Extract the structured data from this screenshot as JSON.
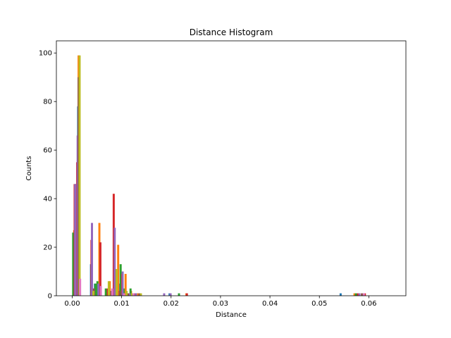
{
  "chart_data": {
    "type": "bar",
    "title": "Distance Histogram",
    "xlabel": "Distance",
    "ylabel": "Counts",
    "xlim": [
      -0.0032,
      0.0675
    ],
    "ylim": [
      0,
      105
    ],
    "x_ticks": [
      0.0,
      0.01,
      0.02,
      0.03,
      0.04,
      0.05,
      0.06
    ],
    "x_tick_labels": [
      "0.00",
      "0.01",
      "0.02",
      "0.03",
      "0.04",
      "0.05",
      "0.06"
    ],
    "y_ticks": [
      0,
      20,
      40,
      60,
      80,
      100
    ],
    "y_tick_labels": [
      "0",
      "20",
      "40",
      "60",
      "80",
      "100"
    ],
    "grid": false,
    "bin_width": 0.00042,
    "series": [
      {
        "color": "#1f77b4",
        "bars": [
          [
            0.0003,
            26
          ],
          [
            0.0008,
            46
          ],
          [
            0.0012,
            78
          ],
          [
            0.0038,
            13
          ],
          [
            0.0046,
            5
          ],
          [
            0.0085,
            14
          ],
          [
            0.0094,
            5
          ],
          [
            0.0108,
            2
          ],
          [
            0.0122,
            1
          ],
          [
            0.0131,
            1
          ],
          [
            0.0197,
            1
          ],
          [
            0.0543,
            1
          ]
        ]
      },
      {
        "color": "#ff7f0e",
        "bars": [
          [
            0.0004,
            27
          ],
          [
            0.0009,
            46
          ],
          [
            0.0013,
            99
          ],
          [
            0.0041,
            3
          ],
          [
            0.0055,
            30
          ],
          [
            0.0076,
            6
          ],
          [
            0.0093,
            21
          ],
          [
            0.0108,
            9
          ],
          [
            0.0119,
            2
          ],
          [
            0.0133,
            1
          ],
          [
            0.0231,
            1
          ],
          [
            0.0571,
            1
          ],
          [
            0.0589,
            1
          ]
        ]
      },
      {
        "color": "#2ca02c",
        "bars": [
          [
            0.0002,
            26
          ],
          [
            0.0007,
            46
          ],
          [
            0.0014,
            90
          ],
          [
            0.0047,
            5
          ],
          [
            0.0051,
            6
          ],
          [
            0.0068,
            3
          ],
          [
            0.0087,
            11
          ],
          [
            0.0098,
            13
          ],
          [
            0.0104,
            3
          ],
          [
            0.0118,
            3
          ],
          [
            0.0127,
            1
          ],
          [
            0.0216,
            1
          ],
          [
            0.0574,
            1
          ]
        ]
      },
      {
        "color": "#d62728",
        "bars": [
          [
            0.0005,
            46
          ],
          [
            0.001,
            55
          ],
          [
            0.0039,
            23
          ],
          [
            0.0057,
            22
          ],
          [
            0.0072,
            3
          ],
          [
            0.0084,
            42
          ],
          [
            0.0101,
            9
          ],
          [
            0.0112,
            1
          ],
          [
            0.0125,
            1
          ],
          [
            0.0232,
            1
          ],
          [
            0.0578,
            1
          ],
          [
            0.0592,
            1
          ]
        ]
      },
      {
        "color": "#9467bd",
        "bars": [
          [
            0.0006,
            46
          ],
          [
            0.0011,
            66
          ],
          [
            0.004,
            30
          ],
          [
            0.0053,
            5
          ],
          [
            0.0086,
            28
          ],
          [
            0.0102,
            10
          ],
          [
            0.0116,
            1
          ],
          [
            0.0129,
            1
          ],
          [
            0.0186,
            1
          ],
          [
            0.0199,
            1
          ],
          [
            0.0581,
            1
          ]
        ]
      },
      {
        "color": "#8c564b",
        "bars": [
          [
            0.0013,
            90
          ],
          [
            0.0044,
            3
          ],
          [
            0.0079,
            2
          ],
          [
            0.0096,
            2
          ],
          [
            0.0113,
            1
          ],
          [
            0.0136,
            1
          ],
          [
            0.0586,
            1
          ]
        ]
      },
      {
        "color": "#bcbd22",
        "bars": [
          [
            0.0015,
            99
          ],
          [
            0.0043,
            2
          ],
          [
            0.0074,
            6
          ],
          [
            0.009,
            11
          ],
          [
            0.011,
            2
          ],
          [
            0.0121,
            1
          ],
          [
            0.0139,
            1
          ]
        ]
      },
      {
        "color": "#e377c2",
        "bars": [
          [
            0.0016,
            7
          ],
          [
            0.0058,
            4
          ],
          [
            0.0081,
            3
          ],
          [
            0.0105,
            1
          ],
          [
            0.0124,
            1
          ],
          [
            0.059,
            1
          ]
        ]
      }
    ]
  }
}
